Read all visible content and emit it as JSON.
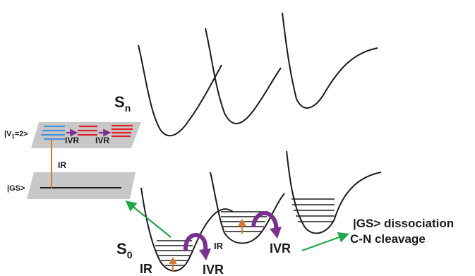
{
  "labels": {
    "sn": "S",
    "sn_sub": "n",
    "s0": "S",
    "s0_sub": "0",
    "v1_a": "|V",
    "v1_sub": "1",
    "v1_b": "=2>",
    "gs": "|GS>",
    "ivr_box_1": "IVR",
    "ivr_box_2": "IVR",
    "ir_box": "IR",
    "ir_main": "IR",
    "ir_mid": "IR",
    "ivr_main_1": "IVR",
    "ivr_main_2": "IVR",
    "dissociation": "|GS> dissociation",
    "cleavage": "C-N cleavage"
  },
  "colors": {
    "curve": "#1a1a1a",
    "plane": "#c8c8c8",
    "blue_levels": "#4a90d9",
    "red_levels": "#e0202a",
    "purple_arrow": "#7b2f8e",
    "ir_arrow": "#d9782a",
    "green_arrow": "#1fa84a"
  }
}
